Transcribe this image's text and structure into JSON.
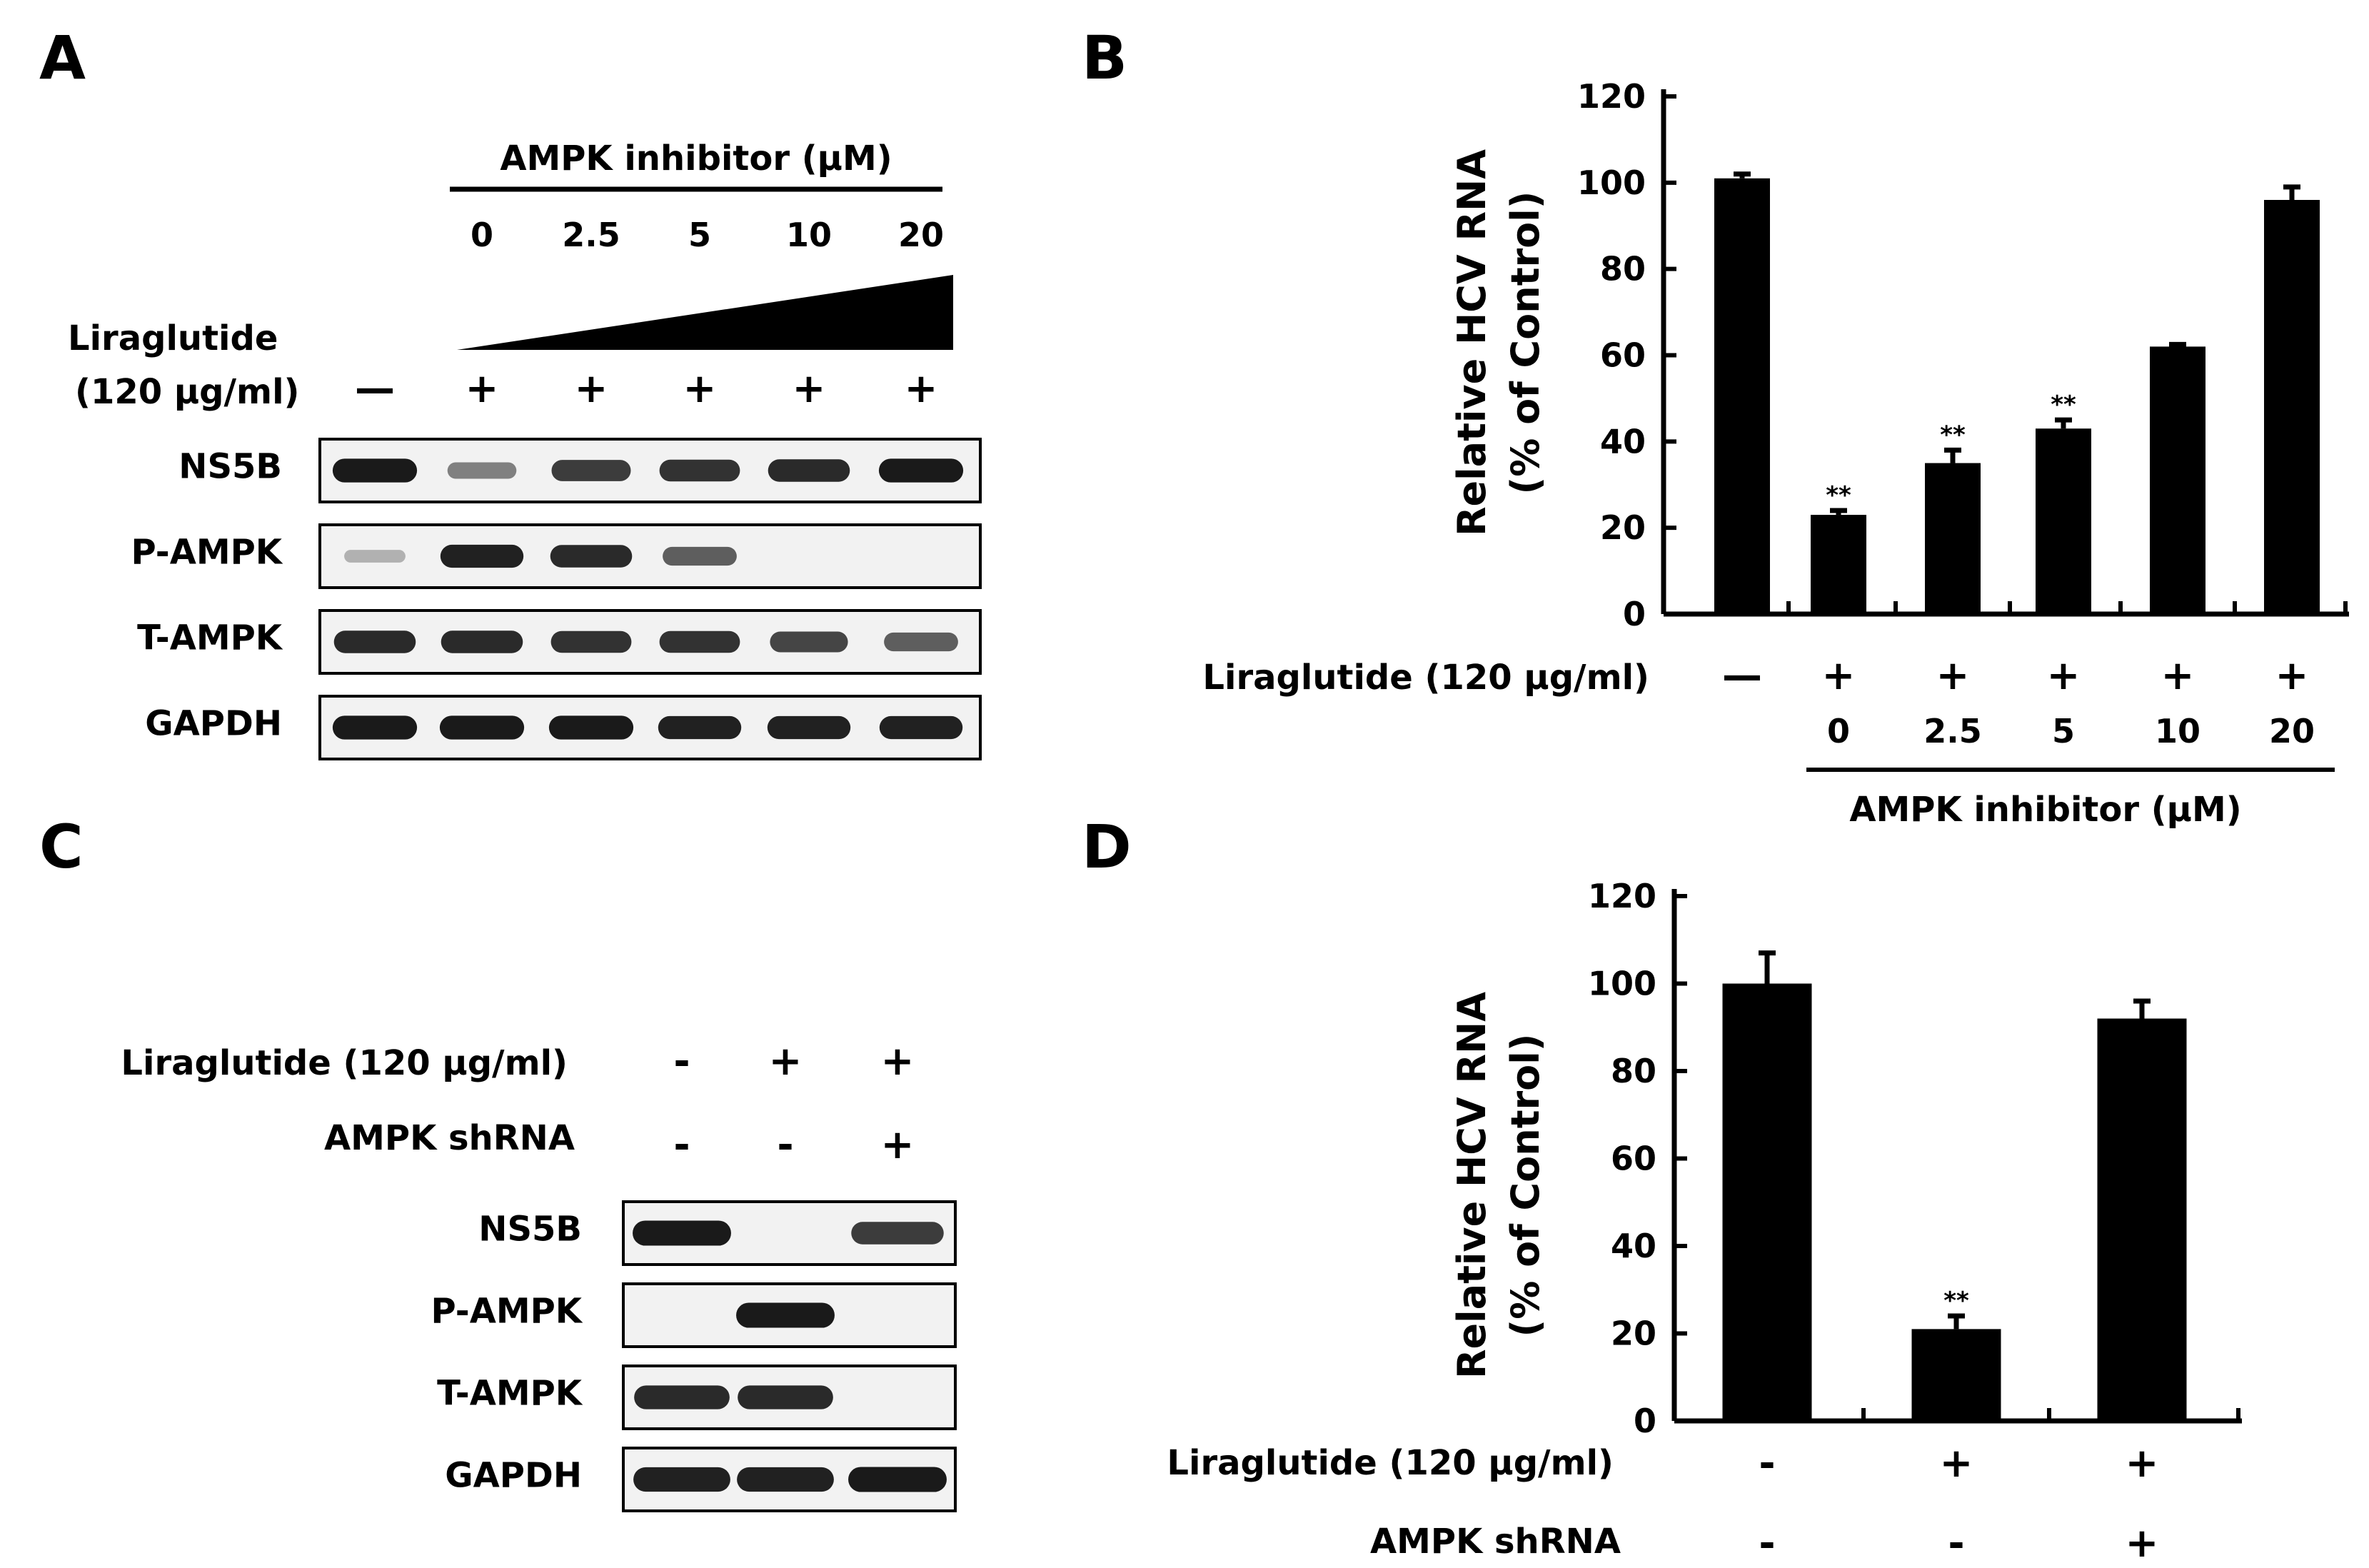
{
  "panels": {
    "A": {
      "letter": "A",
      "inhibitor_title": "AMPK inhibitor (μM)",
      "doses": [
        "0",
        "2.5",
        "5",
        "10",
        "20"
      ],
      "treatment_line1": "Liraglutide",
      "treatment_line2": "(120 μg/ml)",
      "treatment_signs": [
        "—",
        "+",
        "+",
        "+",
        "+",
        "+"
      ],
      "blots": [
        {
          "label": "NS5B",
          "intensity": [
            0.95,
            0.35,
            0.75,
            0.8,
            0.85,
            0.95
          ]
        },
        {
          "label": "P-AMPK",
          "intensity": [
            0.05,
            0.9,
            0.85,
            0.55,
            0.0,
            0.0
          ]
        },
        {
          "label": "T-AMPK",
          "intensity": [
            0.85,
            0.85,
            0.8,
            0.8,
            0.7,
            0.55
          ]
        },
        {
          "label": "GAPDH",
          "intensity": [
            0.95,
            0.95,
            0.95,
            0.9,
            0.9,
            0.9
          ]
        }
      ]
    },
    "C": {
      "letter": "C",
      "row1_label": "Liraglutide (120 μg/ml)",
      "row1_signs": [
        "-",
        "+",
        "+"
      ],
      "row2_label": "AMPK shRNA",
      "row2_signs": [
        "-",
        "-",
        "+"
      ],
      "blots": [
        {
          "label": "NS5B",
          "intensity": [
            0.95,
            0.0,
            0.75
          ]
        },
        {
          "label": "P-AMPK",
          "intensity": [
            0.0,
            0.95,
            0.0
          ]
        },
        {
          "label": "T-AMPK",
          "intensity": [
            0.85,
            0.85,
            0.0
          ]
        },
        {
          "label": "GAPDH",
          "intensity": [
            0.9,
            0.9,
            0.95
          ]
        }
      ]
    },
    "B": {
      "letter": "B"
    },
    "D": {
      "letter": "D"
    }
  },
  "chart_data": [
    {
      "panel": "B",
      "type": "bar",
      "ylabel": [
        "Relative HCV RNA",
        "(% of Control)"
      ],
      "ylim": [
        0,
        120
      ],
      "yticks": [
        0,
        20,
        40,
        60,
        80,
        100,
        120
      ],
      "values": [
        101,
        23,
        35,
        43,
        62,
        96
      ],
      "errors": [
        1,
        1,
        3,
        2,
        0.5,
        3
      ],
      "significance": [
        "",
        "**",
        "**",
        "**",
        "",
        ""
      ],
      "row1_label": "Liraglutide (120 μg/ml)",
      "row1_signs": [
        "—",
        "+",
        "+",
        "+",
        "+",
        "+"
      ],
      "doses": [
        "0",
        "2.5",
        "5",
        "10",
        "20"
      ],
      "inhibitor_title": "AMPK inhibitor (μM)"
    },
    {
      "panel": "D",
      "type": "bar",
      "ylabel": [
        "Relative HCV RNA",
        "(% of Control)"
      ],
      "ylim": [
        0,
        120
      ],
      "yticks": [
        0,
        20,
        40,
        60,
        80,
        100,
        120
      ],
      "values": [
        100,
        21,
        92
      ],
      "errors": [
        7,
        3,
        4
      ],
      "significance": [
        "",
        "**",
        ""
      ],
      "row1_label": "Liraglutide (120 μg/ml)",
      "row1_signs": [
        "-",
        "+",
        "+"
      ],
      "row2_label": "AMPK shRNA",
      "row2_signs": [
        "-",
        "-",
        "+"
      ]
    }
  ]
}
